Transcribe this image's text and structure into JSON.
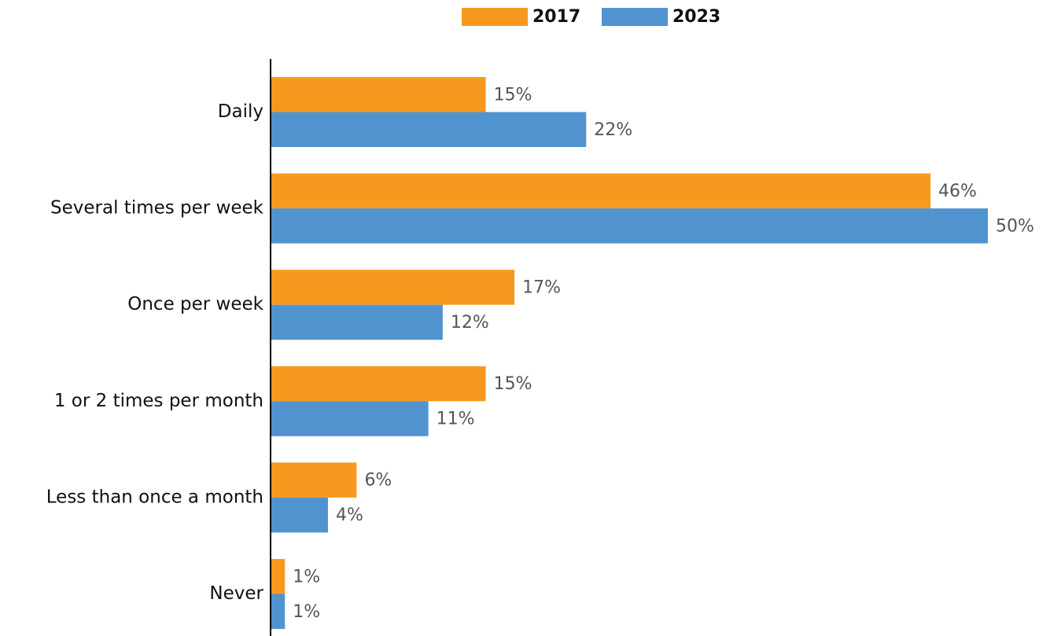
{
  "chart_data": {
    "type": "bar",
    "orientation": "horizontal",
    "categories": [
      "Daily",
      "Several times per week",
      "Once per week",
      "1 or 2 times per month",
      "Less than once a month",
      "Never"
    ],
    "series": [
      {
        "name": "2017",
        "color": "#f7991f",
        "values": [
          15,
          46,
          17,
          15,
          6,
          1
        ],
        "value_labels": [
          "15%",
          "46%",
          "17%",
          "15%",
          "6%",
          "1%"
        ]
      },
      {
        "name": "2023",
        "color": "#5193cf",
        "values": [
          22,
          50,
          12,
          11,
          4,
          1
        ],
        "value_labels": [
          "22%",
          "50%",
          "12%",
          "11%",
          "4%",
          "1%"
        ]
      }
    ],
    "xlim": [
      0,
      50
    ],
    "legend": "top"
  }
}
